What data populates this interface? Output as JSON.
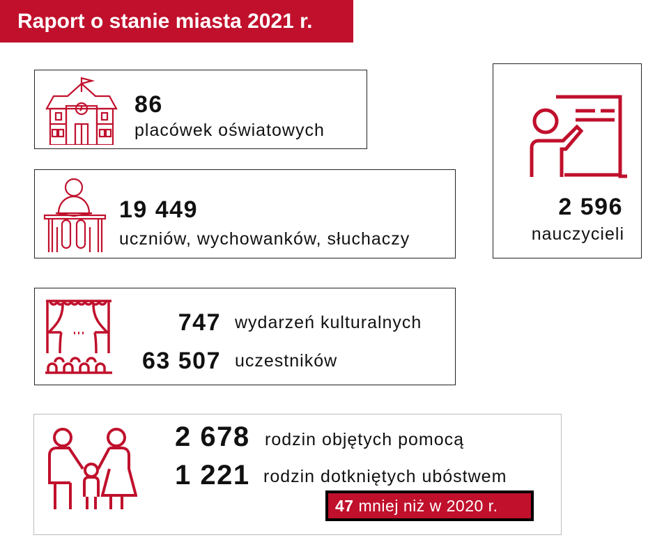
{
  "header": {
    "title": "Raport o stanie miasta 2021 r."
  },
  "stats": {
    "schools": {
      "value": "86",
      "label": "placówek oświatowych"
    },
    "students": {
      "value": "19 449",
      "label": "uczniów, wychowanków, słuchaczy"
    },
    "teachers": {
      "value": "2 596",
      "label": "nauczycieli"
    },
    "culture": {
      "events_value": "747",
      "events_label": "wydarzeń kulturalnych",
      "participants_value": "63 507",
      "participants_label": "uczestników"
    },
    "families": {
      "aid_value": "2 678",
      "aid_label": "rodzin objętych pomocą",
      "poverty_value": "1 221",
      "poverty_label": "rodzin dotkniętych ubóstwem",
      "change_value": "47",
      "change_label": "mniej niż w 2020 r."
    }
  },
  "colors": {
    "accent": "#c0102c"
  }
}
